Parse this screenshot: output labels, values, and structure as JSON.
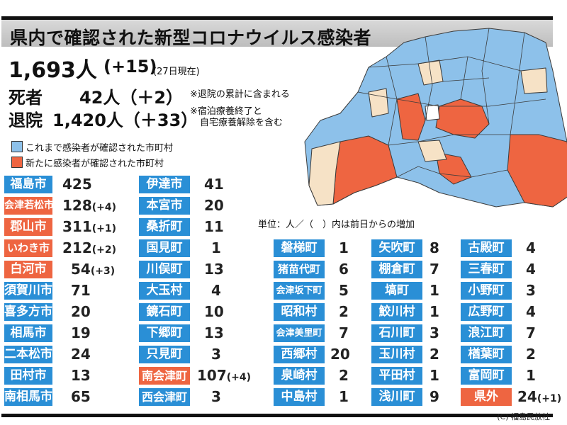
{
  "title": "県内で確認された新型コロナウイルス感染者",
  "total": {
    "value": "1,693人",
    "increase": "(+15)",
    "as_of": "(27日現在)"
  },
  "deaths": {
    "label": "死者",
    "value": "42人（＋2）",
    "note": "※退院の累計に含まれる"
  },
  "discharged": {
    "label": "退院",
    "value": "1,420人（＋33）",
    "note1": "※宿泊療養終了と",
    "note2": "自宅療養解除を含む"
  },
  "legend": {
    "confirmed": "これまで感染者が確認された市町村",
    "new": "新たに感染者が確認された市町村"
  },
  "colors": {
    "confirmed": "#2a8fd6",
    "new": "#ee6541",
    "map_blue": "#8dc1ea",
    "map_orange": "#ee6541",
    "map_beige": "#f6e2c6"
  },
  "unit_note": "単位：人／（　）内は前日からの増加",
  "columns": [
    [
      {
        "name": "福島市",
        "count": "425",
        "inc": "",
        "new": false
      },
      {
        "name": "会津若松市",
        "count": "128",
        "inc": "(+4)",
        "new": true
      },
      {
        "name": "郡山市",
        "count": "311",
        "inc": "(+1)",
        "new": true
      },
      {
        "name": "いわき市",
        "count": "212",
        "inc": "(+2)",
        "new": true
      },
      {
        "name": "白河市",
        "count": "54",
        "inc": "(+3)",
        "new": true
      },
      {
        "name": "須賀川市",
        "count": "71",
        "inc": "",
        "new": false
      },
      {
        "name": "喜多方市",
        "count": "20",
        "inc": "",
        "new": false
      },
      {
        "name": "相馬市",
        "count": "19",
        "inc": "",
        "new": false
      },
      {
        "name": "二本松市",
        "count": "24",
        "inc": "",
        "new": false
      },
      {
        "name": "田村市",
        "count": "13",
        "inc": "",
        "new": false
      },
      {
        "name": "南相馬市",
        "count": "65",
        "inc": "",
        "new": false
      }
    ],
    [
      {
        "name": "伊達市",
        "count": "41",
        "inc": "",
        "new": false
      },
      {
        "name": "本宮市",
        "count": "20",
        "inc": "",
        "new": false
      },
      {
        "name": "桑折町",
        "count": "11",
        "inc": "",
        "new": false
      },
      {
        "name": "国見町",
        "count": "1",
        "inc": "",
        "new": false
      },
      {
        "name": "川俣町",
        "count": "13",
        "inc": "",
        "new": false
      },
      {
        "name": "大玉村",
        "count": "4",
        "inc": "",
        "new": false
      },
      {
        "name": "鏡石町",
        "count": "10",
        "inc": "",
        "new": false
      },
      {
        "name": "下郷町",
        "count": "13",
        "inc": "",
        "new": false
      },
      {
        "name": "只見町",
        "count": "3",
        "inc": "",
        "new": false
      },
      {
        "name": "南会津町",
        "count": "107",
        "inc": "(+4)",
        "new": true
      },
      {
        "name": "西会津町",
        "count": "3",
        "inc": "",
        "new": false
      }
    ],
    [
      {
        "name": "磐梯町",
        "count": "1",
        "inc": "",
        "new": false
      },
      {
        "name": "猪苗代町",
        "count": "6",
        "inc": "",
        "new": false
      },
      {
        "name": "会津坂下町",
        "count": "5",
        "inc": "",
        "new": false
      },
      {
        "name": "昭和村",
        "count": "2",
        "inc": "",
        "new": false
      },
      {
        "name": "会津美里町",
        "count": "7",
        "inc": "",
        "new": false
      },
      {
        "name": "西郷村",
        "count": "20",
        "inc": "",
        "new": false
      },
      {
        "name": "泉崎村",
        "count": "2",
        "inc": "",
        "new": false
      },
      {
        "name": "中島村",
        "count": "1",
        "inc": "",
        "new": false
      }
    ],
    [
      {
        "name": "矢吹町",
        "count": "8",
        "inc": "",
        "new": false
      },
      {
        "name": "棚倉町",
        "count": "7",
        "inc": "",
        "new": false
      },
      {
        "name": "塙町",
        "count": "1",
        "inc": "",
        "new": false
      },
      {
        "name": "鮫川村",
        "count": "1",
        "inc": "",
        "new": false
      },
      {
        "name": "石川町",
        "count": "3",
        "inc": "",
        "new": false
      },
      {
        "name": "玉川村",
        "count": "2",
        "inc": "",
        "new": false
      },
      {
        "name": "平田村",
        "count": "1",
        "inc": "",
        "new": false
      },
      {
        "name": "浅川町",
        "count": "9",
        "inc": "",
        "new": false
      }
    ],
    [
      {
        "name": "古殿町",
        "count": "4",
        "inc": "",
        "new": false
      },
      {
        "name": "三春町",
        "count": "4",
        "inc": "",
        "new": false
      },
      {
        "name": "小野町",
        "count": "3",
        "inc": "",
        "new": false
      },
      {
        "name": "広野町",
        "count": "4",
        "inc": "",
        "new": false
      },
      {
        "name": "浪江町",
        "count": "7",
        "inc": "",
        "new": false
      },
      {
        "name": "楢葉町",
        "count": "2",
        "inc": "",
        "new": false
      },
      {
        "name": "富岡町",
        "count": "1",
        "inc": "",
        "new": false
      },
      {
        "name": "県外",
        "count": "24",
        "inc": "(+1)",
        "new": true
      }
    ]
  ],
  "copyright": "(C) 福島民放社"
}
